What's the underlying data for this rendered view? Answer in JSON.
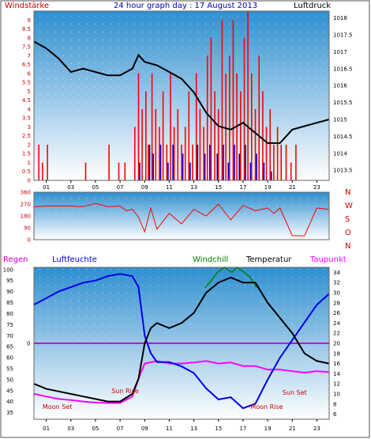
{
  "header": {
    "left_label": "Windstärke",
    "title": "24 hour graph day : 17 August 2013",
    "right_label": "Luftdruck"
  },
  "colors": {
    "frame_border": "#555555",
    "panel_top": "#2f8fd0",
    "panel_bottom": "#ffffff",
    "wind": "#ff0000",
    "gust": "#0000dd",
    "pressure": "#000000",
    "direction": "#ff0000",
    "humidity": "#0000ee",
    "dewpoint": "#ff00ff",
    "temperature": "#000000",
    "windchill": "#008000",
    "rain": "#cc00cc",
    "sun": "#cc0000"
  },
  "x_ticks": [
    "01",
    "03",
    "05",
    "07",
    "09",
    "11",
    "13",
    "15",
    "17",
    "19",
    "21",
    "23"
  ],
  "chart_data": [
    {
      "type": "bar",
      "panel": "wind",
      "left_axis": {
        "label": "Windstärke",
        "range": [
          0,
          9.5
        ],
        "ticks": [
          "0",
          "0.5",
          "1",
          "1.5",
          "2",
          "2.5",
          "3",
          "3.5",
          "4",
          "4.5",
          "5",
          "5.5",
          "6",
          "6.5",
          "7",
          "7.5",
          "8",
          "8.5",
          "9"
        ]
      },
      "right_axis": {
        "label": "Luftdruck",
        "range": [
          1013.2,
          1018.2
        ],
        "ticks": [
          "1013.5",
          "1014",
          "1014.5",
          "1015",
          "1015.5",
          "1016",
          "1016.5",
          "1017",
          "1017.5",
          "1018"
        ]
      },
      "x_range": [
        0,
        24
      ],
      "series": [
        {
          "role": "wind",
          "type": "bar",
          "x": [
            0.4,
            0.7,
            1.1,
            4.2,
            6.1,
            6.9,
            7.4,
            8.2,
            8.5,
            8.8,
            9.1,
            9.3,
            9.6,
            9.9,
            10.2,
            10.5,
            10.8,
            11.1,
            11.4,
            11.7,
            12.0,
            12.3,
            12.6,
            12.9,
            13.2,
            13.5,
            13.8,
            14.1,
            14.4,
            14.7,
            15.0,
            15.3,
            15.6,
            15.9,
            16.2,
            16.5,
            16.8,
            17.1,
            17.4,
            17.7,
            18.0,
            18.3,
            18.6,
            18.9,
            19.2,
            19.5,
            19.8,
            20.1,
            20.5,
            20.9,
            21.3
          ],
          "values": [
            2,
            1,
            2,
            1,
            2,
            1,
            1,
            3,
            6,
            4,
            5,
            2,
            6,
            4,
            3,
            5,
            2,
            6,
            3,
            4,
            2,
            3,
            5,
            2,
            6,
            4,
            3,
            7,
            8,
            5,
            4,
            9,
            6,
            7,
            9,
            6,
            5,
            8,
            9.5,
            6,
            4,
            7,
            5,
            3,
            4,
            2,
            3,
            2,
            2,
            1,
            2
          ]
        },
        {
          "role": "gust",
          "type": "bar",
          "x": [
            8.6,
            9.4,
            9.7,
            10.3,
            10.9,
            11.3,
            12.1,
            12.7,
            13.3,
            13.9,
            14.3,
            14.9,
            15.4,
            15.8,
            16.3,
            16.7,
            17.2,
            17.6,
            18.1,
            18.7,
            19.3
          ],
          "values": [
            1,
            2,
            1.5,
            2,
            1,
            2,
            1.5,
            1,
            2,
            1.5,
            2,
            1.5,
            2,
            1,
            2,
            1.5,
            2,
            1,
            1.5,
            1,
            0.5
          ]
        },
        {
          "role": "pressure",
          "type": "line",
          "x": [
            0,
            1,
            2,
            3,
            4,
            5,
            6,
            7,
            8,
            8.5,
            9,
            10,
            11,
            12,
            13,
            14,
            15,
            16,
            17,
            18,
            19,
            20,
            21,
            22,
            23,
            24
          ],
          "values": [
            1017.3,
            1017.1,
            1016.8,
            1016.4,
            1016.5,
            1016.4,
            1016.3,
            1016.3,
            1016.5,
            1016.9,
            1016.7,
            1016.6,
            1016.4,
            1016.2,
            1015.8,
            1015.2,
            1014.8,
            1014.7,
            1014.9,
            1014.6,
            1014.3,
            1014.3,
            1014.7,
            1014.8,
            1014.9,
            1015
          ]
        }
      ]
    },
    {
      "type": "line",
      "panel": "wind_direction",
      "left_axis": {
        "range": [
          0,
          360
        ],
        "ticks": [
          "0",
          "90",
          "180",
          "270",
          "360"
        ]
      },
      "right_axis_labels": [
        "N",
        "W",
        "S",
        "O",
        "N"
      ],
      "x_range": [
        0,
        24
      ],
      "series": [
        {
          "role": "direction",
          "x": [
            0,
            1,
            2,
            3,
            4,
            5,
            6,
            7,
            7.5,
            8,
            8.5,
            9,
            9.5,
            10,
            11,
            12,
            13,
            14,
            15,
            16,
            17,
            18,
            19,
            19.5,
            20,
            21,
            22,
            23,
            24
          ],
          "values": [
            250,
            255,
            255,
            255,
            250,
            275,
            250,
            255,
            220,
            230,
            170,
            60,
            240,
            80,
            200,
            120,
            230,
            180,
            270,
            150,
            260,
            220,
            240,
            200,
            240,
            30,
            30,
            240,
            230
          ]
        }
      ]
    },
    {
      "type": "line",
      "panel": "humidity_temperature",
      "left_axis": {
        "label": "Luftfeuchte",
        "range": [
          32,
          101
        ],
        "ticks": [
          "35",
          "40",
          "45",
          "50",
          "55",
          "60",
          "65",
          "70",
          "75",
          "80",
          "85",
          "90",
          "95",
          "100"
        ]
      },
      "right_axis": {
        "label": "Temperatur",
        "range": [
          5,
          35
        ],
        "ticks": [
          "6",
          "8",
          "10",
          "12",
          "14",
          "16",
          "18",
          "20",
          "22",
          "24",
          "26",
          "28",
          "30",
          "32",
          "34"
        ]
      },
      "rain_label": "Regen",
      "rain_axis": {
        "value": 0,
        "label": "0"
      },
      "x_range": [
        0,
        24
      ],
      "series": [
        {
          "name": "Luftfeuchte",
          "role": "humidity",
          "axis": "left",
          "x": [
            0,
            1,
            2,
            3,
            4,
            5,
            6,
            7,
            8,
            8.5,
            9,
            9.5,
            10,
            11,
            12,
            13,
            14,
            15,
            16,
            17,
            18,
            19,
            20,
            21,
            22,
            23,
            24
          ],
          "values": [
            84,
            87,
            90,
            92,
            94,
            95,
            97,
            98,
            97,
            92,
            70,
            62,
            58,
            58,
            56,
            53,
            46,
            41,
            42,
            37,
            39,
            50,
            60,
            68,
            76,
            84,
            89
          ]
        },
        {
          "name": "Temperatur",
          "role": "temperature",
          "axis": "right",
          "x": [
            0,
            1,
            2,
            3,
            4,
            5,
            6,
            7,
            8,
            8.5,
            9,
            9.5,
            10,
            11,
            12,
            13,
            14,
            15,
            16,
            17,
            18,
            19,
            20,
            21,
            22,
            23,
            24
          ],
          "values": [
            12,
            11,
            10.5,
            10,
            9.5,
            9,
            8.5,
            8.5,
            10,
            13,
            20,
            23,
            24,
            23,
            24,
            26,
            30,
            32,
            33,
            32,
            32,
            28,
            25,
            22,
            18,
            16.5,
            16
          ]
        },
        {
          "name": "Taupunkt",
          "role": "dewpoint",
          "axis": "right",
          "x": [
            0,
            1,
            2,
            3,
            4,
            5,
            6,
            7,
            8,
            8.5,
            9,
            10,
            11,
            12,
            13,
            14,
            15,
            16,
            17,
            18,
            19,
            20,
            21,
            22,
            23,
            24
          ],
          "values": [
            10,
            9.5,
            9,
            8.8,
            8.5,
            8.3,
            8.2,
            8.2,
            9.5,
            13,
            16,
            16.5,
            16,
            16,
            16.2,
            16.5,
            16,
            16.2,
            15.5,
            15.5,
            14.8,
            14.8,
            14.5,
            14.2,
            14.5,
            14.3
          ]
        },
        {
          "name": "Windchill",
          "role": "windchill",
          "axis": "right",
          "x": [
            13.9,
            14.3,
            14.9,
            15.5,
            16.1,
            16.5,
            17.1,
            17.6,
            18.1
          ],
          "values": [
            31,
            32,
            34,
            35,
            34,
            35,
            34,
            33,
            31
          ]
        },
        {
          "name": "Regen",
          "role": "rain",
          "axis": "rain",
          "x": [
            0,
            24
          ],
          "values": [
            0,
            0
          ]
        }
      ],
      "annotations": [
        {
          "text": "Sun Rise",
          "x": 6.3
        },
        {
          "text": "Moon Set",
          "x": 0.7
        },
        {
          "text": "Sun Set",
          "x": 20.2
        },
        {
          "text": "Moon Rise",
          "x": 17.6
        }
      ]
    }
  ]
}
